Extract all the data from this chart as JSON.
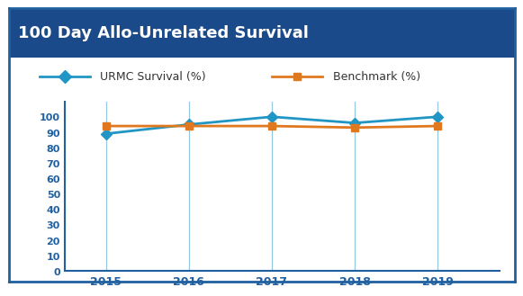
{
  "title": "100 Day Allo-Unrelated Survival",
  "title_bg_color": "#1a4a8a",
  "title_text_color": "#ffffff",
  "years": [
    2015,
    2016,
    2017,
    2018,
    2019
  ],
  "urmc_values": [
    89,
    95,
    100,
    96,
    100
  ],
  "benchmark_values": [
    94,
    94,
    94,
    93,
    94
  ],
  "urmc_color": "#2196c4",
  "benchmark_color": "#e07820",
  "urmc_label": "URMC Survival (%)",
  "benchmark_label": "Benchmark (%)",
  "ylim": [
    0,
    110
  ],
  "yticks": [
    0,
    10,
    20,
    30,
    40,
    50,
    60,
    70,
    80,
    90,
    100
  ],
  "grid_color": "#6ab0d4",
  "grid_alpha": 0.7,
  "border_color": "#2060a0",
  "tick_color": "#2060a0",
  "bg_color": "#ffffff"
}
